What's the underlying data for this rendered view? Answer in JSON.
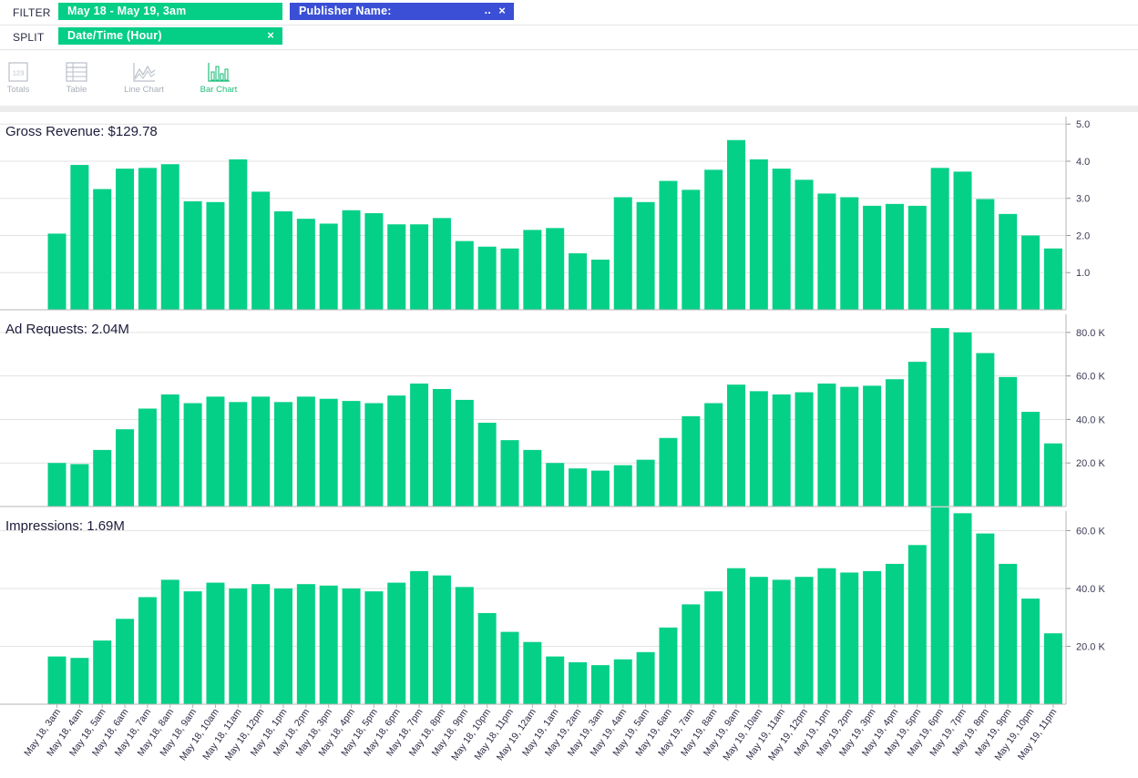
{
  "toolbar": {
    "filter_label": "FILTER",
    "split_label": "SPLIT",
    "date_filter": "May 18 - May 19, 3am",
    "publisher_filter": "Publisher Name:",
    "publisher_more": "..",
    "split_pill": "Date/Time (Hour)",
    "close_glyph": "×"
  },
  "viz_options": [
    {
      "label": "Totals",
      "icon": "totals-icon",
      "active": false
    },
    {
      "label": "Table",
      "icon": "table-icon",
      "active": false
    },
    {
      "label": "Line Chart",
      "icon": "line-chart-icon",
      "active": false
    },
    {
      "label": "Bar Chart",
      "icon": "bar-chart-icon",
      "active": true
    }
  ],
  "colors": {
    "bar": "#05d088",
    "date_pill": "#05ce87",
    "publisher_pill": "#3a4fd6",
    "grid": "#e2e2e2"
  },
  "chart_data": [
    {
      "type": "bar",
      "title": "Gross Revenue: $129.78",
      "ylim": [
        0,
        5.3
      ],
      "yticks": [
        1.0,
        2.0,
        3.0,
        4.0,
        5.0
      ],
      "ytick_labels": [
        "1.0",
        "2.0",
        "3.0",
        "4.0",
        "5.0"
      ],
      "values": [
        2.05,
        3.9,
        3.25,
        3.8,
        3.82,
        3.92,
        2.92,
        2.9,
        4.05,
        3.18,
        2.65,
        2.45,
        2.32,
        2.68,
        2.6,
        2.3,
        2.3,
        2.47,
        1.85,
        1.7,
        1.65,
        2.15,
        2.2,
        1.52,
        1.35,
        3.03,
        2.9,
        3.47,
        3.23,
        3.77,
        4.57,
        4.05,
        3.8,
        3.5,
        3.13,
        3.03,
        2.8,
        2.85,
        2.8,
        3.82,
        3.72,
        2.98,
        2.58,
        2.0,
        1.65
      ]
    },
    {
      "type": "bar",
      "title": "Ad Requests: 2.04M",
      "ylim": [
        0,
        90000
      ],
      "yticks": [
        20000,
        40000,
        60000,
        80000
      ],
      "ytick_labels": [
        "20.0 K",
        "40.0 K",
        "60.0 K",
        "80.0 K"
      ],
      "values": [
        20000,
        19500,
        26000,
        35500,
        45000,
        51500,
        47500,
        50500,
        48000,
        50500,
        48000,
        50500,
        49500,
        48500,
        47500,
        51000,
        56500,
        54000,
        49000,
        38500,
        30500,
        26000,
        20000,
        17500,
        16500,
        19000,
        21500,
        31500,
        41500,
        47500,
        56000,
        53000,
        51500,
        52500,
        56500,
        55000,
        55500,
        58500,
        66500,
        82000,
        80000,
        70500,
        59500,
        43500,
        29000
      ]
    },
    {
      "type": "bar",
      "title": "Impressions: 1.69M",
      "ylim": [
        0,
        68000
      ],
      "yticks": [
        20000,
        40000,
        60000
      ],
      "ytick_labels": [
        "20.0 K",
        "40.0 K",
        "60.0 K"
      ],
      "values": [
        16500,
        16000,
        22000,
        29500,
        37000,
        43000,
        39000,
        42000,
        40000,
        41500,
        40000,
        41500,
        41000,
        40000,
        39000,
        42000,
        46000,
        44500,
        40500,
        31500,
        25000,
        21500,
        16500,
        14500,
        13500,
        15500,
        18000,
        26500,
        34500,
        39000,
        47000,
        44000,
        43000,
        44000,
        47000,
        45500,
        46000,
        48500,
        55000,
        68000,
        66000,
        59000,
        48500,
        36500,
        24500
      ]
    }
  ],
  "categories": [
    "May 18, 3am",
    "May 18, 4am",
    "May 18, 5am",
    "May 18, 6am",
    "May 18, 7am",
    "May 18, 8am",
    "May 18, 9am",
    "May 18, 10am",
    "May 18, 11am",
    "May 18, 12pm",
    "May 18, 1pm",
    "May 18, 2pm",
    "May 18, 3pm",
    "May 18, 4pm",
    "May 18, 5pm",
    "May 18, 6pm",
    "May 18, 7pm",
    "May 18, 8pm",
    "May 18, 9pm",
    "May 18, 10pm",
    "May 18, 11pm",
    "May 19, 12am",
    "May 19, 1am",
    "May 19, 2am",
    "May 19, 3am",
    "May 19, 4am",
    "May 19, 5am",
    "May 19, 6am",
    "May 19, 7am",
    "May 19, 8am",
    "May 19, 9am",
    "May 19, 10am",
    "May 19, 11am",
    "May 19, 12pm",
    "May 19, 1pm",
    "May 19, 2pm",
    "May 19, 3pm",
    "May 19, 4pm",
    "May 19, 5pm",
    "May 19, 6pm",
    "May 19, 7pm",
    "May 19, 8pm",
    "May 19, 9pm",
    "May 19, 10pm",
    "May 19, 11pm"
  ]
}
